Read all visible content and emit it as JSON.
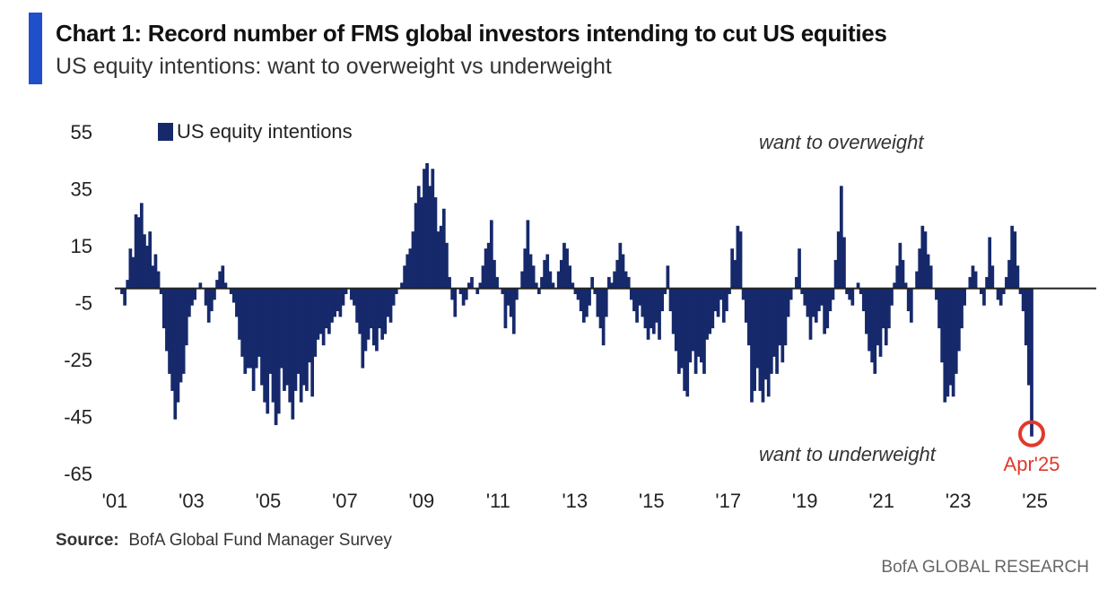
{
  "header": {
    "title": "Chart 1: Record number of FMS global investors intending to cut US equities",
    "subtitle": "US equity intentions: want to overweight vs underweight",
    "accent_color": "#1f4fc9"
  },
  "footer": {
    "source_label": "Source:",
    "source_text": "BofA Global Fund Manager Survey",
    "brand": "BofA GLOBAL RESEARCH"
  },
  "chart_data": {
    "type": "bar",
    "series": [
      {
        "name": "US equity intentions",
        "color": "#16296b",
        "x_start": 2001.0,
        "x_step": 0.0833,
        "values": [
          -2,
          -6,
          3,
          14,
          11,
          26,
          25,
          30,
          19,
          15,
          20,
          8,
          12,
          6,
          -2,
          -14,
          -22,
          -30,
          -36,
          -46,
          -40,
          -33,
          -30,
          -20,
          -10,
          -6,
          -4,
          0,
          2,
          0,
          -6,
          -12,
          -8,
          -4,
          3,
          6,
          8,
          2,
          0,
          -2,
          -5,
          -10,
          -18,
          -24,
          -30,
          -28,
          -28,
          -36,
          -28,
          -24,
          -34,
          -40,
          -44,
          -30,
          -40,
          -48,
          -44,
          -28,
          -36,
          -34,
          -40,
          -46,
          -36,
          -30,
          -40,
          -34,
          -36,
          -26,
          -38,
          -24,
          -18,
          -16,
          -20,
          -14,
          -16,
          -12,
          -10,
          -8,
          -10,
          -6,
          -2,
          0,
          -4,
          -6,
          -12,
          -16,
          -28,
          -22,
          -18,
          -14,
          -20,
          -22,
          -14,
          -18,
          -16,
          -10,
          -12,
          -6,
          -2,
          0,
          2,
          8,
          12,
          14,
          20,
          30,
          36,
          32,
          42,
          44,
          36,
          42,
          32,
          20,
          22,
          28,
          16,
          4,
          -4,
          -10,
          0,
          -2,
          -6,
          -4,
          2,
          4,
          0,
          -2,
          2,
          8,
          14,
          16,
          24,
          10,
          4,
          0,
          -2,
          -14,
          -6,
          -10,
          -16,
          -4,
          0,
          6,
          14,
          24,
          12,
          8,
          2,
          -2,
          4,
          10,
          12,
          6,
          2,
          0,
          6,
          10,
          16,
          14,
          8,
          2,
          -2,
          -4,
          -8,
          -12,
          -10,
          -6,
          4,
          -2,
          -10,
          -14,
          -20,
          -10,
          4,
          2,
          6,
          10,
          16,
          12,
          6,
          4,
          -4,
          -8,
          -12,
          -6,
          -10,
          -14,
          -18,
          -14,
          -16,
          -12,
          -18,
          -8,
          -2,
          8,
          -8,
          -16,
          -22,
          -30,
          -28,
          -36,
          -38,
          -26,
          -22,
          -30,
          -24,
          -26,
          -30,
          -18,
          -16,
          -14,
          -8,
          -10,
          -4,
          -12,
          -8,
          -2,
          14,
          10,
          22,
          20,
          -4,
          -12,
          -20,
          -40,
          -36,
          -28,
          -36,
          -40,
          -32,
          -38,
          -30,
          -24,
          -30,
          -20,
          -26,
          -20,
          -10,
          -4,
          0,
          4,
          14,
          -2,
          -6,
          -10,
          -18,
          -10,
          -12,
          -8,
          -6,
          -16,
          -14,
          -8,
          -4,
          10,
          20,
          36,
          18,
          -2,
          -4,
          -6,
          0,
          2,
          -2,
          -8,
          -16,
          -22,
          -26,
          -30,
          -20,
          -24,
          -14,
          -20,
          -14,
          -6,
          2,
          8,
          16,
          10,
          2,
          -8,
          -12,
          0,
          6,
          14,
          22,
          20,
          12,
          8,
          0,
          -4,
          -14,
          -26,
          -40,
          -38,
          -34,
          -38,
          -30,
          -22,
          -14,
          -6,
          0,
          4,
          8,
          6,
          0,
          -2,
          -6,
          4,
          18,
          8,
          0,
          -4,
          -6,
          -2,
          4,
          10,
          22,
          20,
          8,
          -2,
          -8,
          -20,
          -34,
          -52
        ]
      }
    ],
    "y_ticks": [
      55,
      35,
      15,
      -5,
      -25,
      -45,
      -65
    ],
    "y_tick_labels": [
      "55",
      "35",
      "15",
      "-5",
      "-25",
      "-45",
      "-65"
    ],
    "x_ticks": [
      2001,
      2003,
      2005,
      2007,
      2009,
      2011,
      2013,
      2015,
      2017,
      2019,
      2021,
      2023,
      2025
    ],
    "x_tick_labels": [
      "'01",
      "'03",
      "'05",
      "'07",
      "'09",
      "'11",
      "'13",
      "'15",
      "'17",
      "'19",
      "'21",
      "'23",
      "'25"
    ],
    "xlim": [
      2001.0,
      2026.6
    ],
    "ylim": [
      -65,
      55
    ],
    "baseline": 0,
    "annotations": {
      "top": "want to overweight",
      "bottom": "want to underweight",
      "highlight_label": "Apr'25",
      "highlight_value": -52,
      "highlight_color": "#e03a2c"
    },
    "legend": {
      "position": "top-left"
    },
    "grid": false
  }
}
